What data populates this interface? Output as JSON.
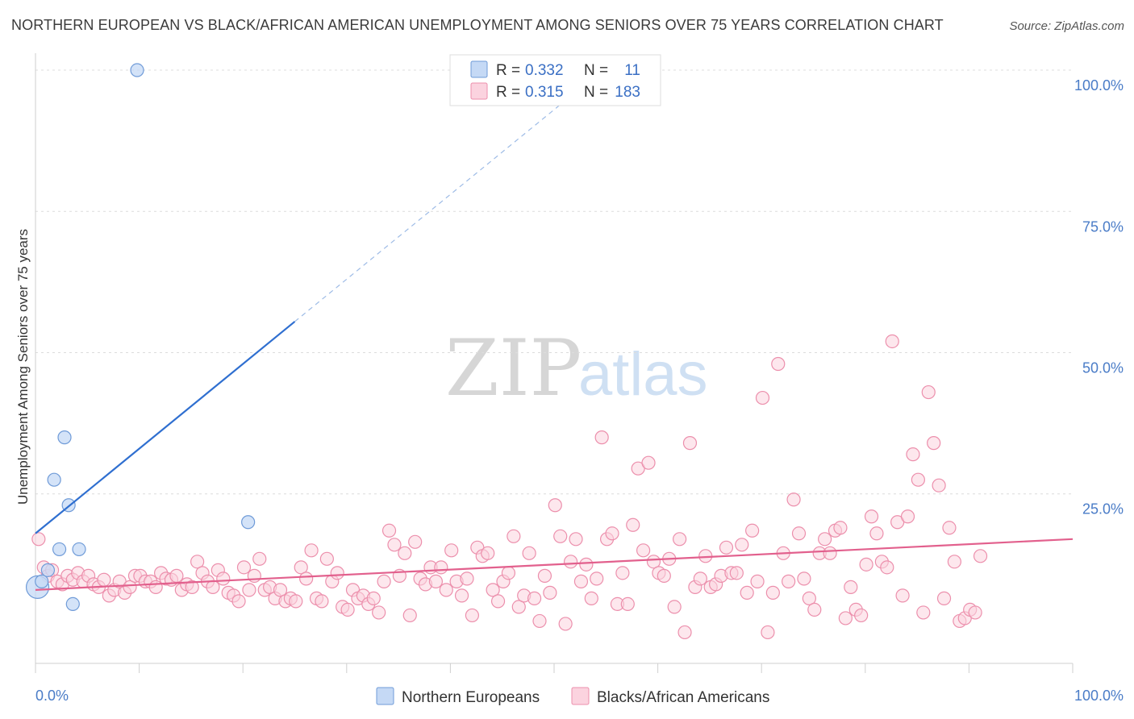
{
  "header": {
    "title": "NORTHERN EUROPEAN VS BLACK/AFRICAN AMERICAN UNEMPLOYMENT AMONG SENIORS OVER 75 YEARS CORRELATION CHART",
    "source": "Source: ZipAtlas.com"
  },
  "watermark": {
    "zip": "ZIP",
    "atlas": "atlas"
  },
  "chart_data": {
    "type": "scatter",
    "title": "NORTHERN EUROPEAN VS BLACK/AFRICAN AMERICAN UNEMPLOYMENT AMONG SENIORS OVER 75 YEARS CORRELATION CHART",
    "ylabel": "Unemployment Among Seniors over 75 years",
    "xlabel": "",
    "xlim": [
      0,
      100
    ],
    "ylim": [
      -5,
      103
    ],
    "x_tick_labels": [
      "0.0%",
      "100.0%"
    ],
    "y_ticks": [
      25,
      50,
      75,
      100
    ],
    "y_tick_labels": [
      "25.0%",
      "50.0%",
      "75.0%",
      "100.0%"
    ],
    "grid": true,
    "legend": {
      "placement": "top-center",
      "rows": [
        {
          "r_label": "R =",
          "r_value": "0.332",
          "n_label": "N =",
          "n_value": "11"
        },
        {
          "r_label": "R =",
          "r_value": "0.315",
          "n_label": "N =",
          "n_value": "183"
        }
      ]
    },
    "bottom_legend": [
      "Northern Europeans",
      "Blacks/African Americans"
    ],
    "colors": {
      "northern_fill": "#c5d9f5",
      "northern_stroke": "#6f9bd8",
      "northern_line": "#2f6fd0",
      "black_fill": "#fbd3df",
      "black_stroke": "#ec8fac",
      "black_line": "#e2608d"
    },
    "series": [
      {
        "name": "Northern Europeans",
        "trend": {
          "x0": 0,
          "y0": 18,
          "x1": 25,
          "y1": 55.5,
          "dash_to_x": 53
        },
        "points": [
          [
            0.2,
            8.5
          ],
          [
            0.6,
            9.5
          ],
          [
            1.2,
            11.5
          ],
          [
            1.8,
            27.5
          ],
          [
            2.3,
            15.2
          ],
          [
            2.8,
            35
          ],
          [
            3.2,
            23
          ],
          [
            3.6,
            5.5
          ],
          [
            4.2,
            15.2
          ],
          [
            9.8,
            100
          ],
          [
            20.5,
            20
          ]
        ]
      },
      {
        "name": "Blacks/African Americans",
        "trend": {
          "x0": 0,
          "y0": 8,
          "x1": 100,
          "y1": 17
        },
        "points": [
          [
            0.3,
            17
          ],
          [
            0.8,
            12
          ],
          [
            1.2,
            10.5
          ],
          [
            1.6,
            11.5
          ],
          [
            2.1,
            9.5
          ],
          [
            2.6,
            9
          ],
          [
            3.1,
            10.5
          ],
          [
            3.6,
            9.8
          ],
          [
            4.1,
            11
          ],
          [
            4.6,
            9.5
          ],
          [
            5.1,
            10.5
          ],
          [
            5.6,
            9
          ],
          [
            6.1,
            8.5
          ],
          [
            6.6,
            9.8
          ],
          [
            7.1,
            7
          ],
          [
            7.6,
            8
          ],
          [
            8.1,
            9.5
          ],
          [
            8.6,
            7.5
          ],
          [
            9.1,
            8.5
          ],
          [
            9.6,
            10.5
          ],
          [
            10.1,
            10.5
          ],
          [
            10.6,
            9.5
          ],
          [
            11.1,
            9.5
          ],
          [
            11.6,
            8.5
          ],
          [
            12.1,
            11
          ],
          [
            12.6,
            10
          ],
          [
            13.1,
            9.8
          ],
          [
            13.6,
            10.5
          ],
          [
            14.1,
            8
          ],
          [
            14.6,
            9
          ],
          [
            15.1,
            8.5
          ],
          [
            15.6,
            13
          ],
          [
            16.1,
            11
          ],
          [
            16.6,
            9.5
          ],
          [
            17.1,
            8.5
          ],
          [
            17.6,
            11.5
          ],
          [
            18.1,
            10
          ],
          [
            18.6,
            7.5
          ],
          [
            19.1,
            7
          ],
          [
            19.6,
            6
          ],
          [
            20.1,
            12
          ],
          [
            20.6,
            8
          ],
          [
            21.1,
            10.5
          ],
          [
            21.6,
            13.5
          ],
          [
            22.1,
            8
          ],
          [
            22.6,
            8.5
          ],
          [
            23.1,
            6.5
          ],
          [
            23.6,
            8
          ],
          [
            24.1,
            6
          ],
          [
            24.6,
            6.5
          ],
          [
            25.1,
            6
          ],
          [
            25.6,
            12
          ],
          [
            26.1,
            10
          ],
          [
            26.6,
            15
          ],
          [
            27.1,
            6.5
          ],
          [
            27.6,
            6
          ],
          [
            28.1,
            13.5
          ],
          [
            28.6,
            9.5
          ],
          [
            29.1,
            11
          ],
          [
            29.6,
            5
          ],
          [
            30.1,
            4.5
          ],
          [
            30.6,
            8
          ],
          [
            31.1,
            6.5
          ],
          [
            31.6,
            7
          ],
          [
            32.1,
            5.5
          ],
          [
            32.6,
            6.5
          ],
          [
            33.1,
            4
          ],
          [
            33.6,
            9.5
          ],
          [
            34.1,
            18.5
          ],
          [
            34.6,
            16
          ],
          [
            35.1,
            10.5
          ],
          [
            35.6,
            14.5
          ],
          [
            36.1,
            3.5
          ],
          [
            36.6,
            16.5
          ],
          [
            37.1,
            10
          ],
          [
            37.6,
            9
          ],
          [
            38.1,
            12
          ],
          [
            38.6,
            9.5
          ],
          [
            39.1,
            12
          ],
          [
            39.6,
            8
          ],
          [
            40.1,
            15
          ],
          [
            40.6,
            9.5
          ],
          [
            41.1,
            7
          ],
          [
            41.6,
            10
          ],
          [
            42.1,
            3.5
          ],
          [
            42.6,
            15.5
          ],
          [
            43.1,
            14
          ],
          [
            43.6,
            14.5
          ],
          [
            44.1,
            8
          ],
          [
            44.6,
            6
          ],
          [
            45.1,
            9.5
          ],
          [
            45.6,
            11
          ],
          [
            46.1,
            17.5
          ],
          [
            46.6,
            5
          ],
          [
            47.1,
            7
          ],
          [
            47.6,
            14.5
          ],
          [
            48.1,
            6.5
          ],
          [
            48.6,
            2.5
          ],
          [
            49.1,
            10.5
          ],
          [
            49.6,
            7.5
          ],
          [
            50.1,
            23
          ],
          [
            50.6,
            17.5
          ],
          [
            51.1,
            2
          ],
          [
            51.6,
            13
          ],
          [
            52.1,
            17
          ],
          [
            52.6,
            9.5
          ],
          [
            53.1,
            12.5
          ],
          [
            53.6,
            6.5
          ],
          [
            54.1,
            10
          ],
          [
            54.6,
            35
          ],
          [
            55.1,
            17
          ],
          [
            55.6,
            18
          ],
          [
            56.1,
            5.5
          ],
          [
            56.6,
            11
          ],
          [
            57.1,
            5.5
          ],
          [
            57.6,
            19.5
          ],
          [
            58.1,
            29.5
          ],
          [
            58.6,
            15
          ],
          [
            59.1,
            30.5
          ],
          [
            59.6,
            13
          ],
          [
            60.1,
            11
          ],
          [
            60.6,
            10.5
          ],
          [
            61.1,
            13.5
          ],
          [
            61.6,
            5
          ],
          [
            62.1,
            17
          ],
          [
            62.6,
            0.5
          ],
          [
            63.1,
            34
          ],
          [
            63.6,
            8.5
          ],
          [
            64.1,
            10
          ],
          [
            64.6,
            14
          ],
          [
            65.1,
            8.5
          ],
          [
            65.6,
            9
          ],
          [
            66.1,
            10.5
          ],
          [
            66.6,
            15.5
          ],
          [
            67.1,
            11
          ],
          [
            67.6,
            11
          ],
          [
            68.1,
            16
          ],
          [
            68.6,
            7.5
          ],
          [
            69.1,
            18.5
          ],
          [
            69.6,
            9.5
          ],
          [
            70.1,
            42
          ],
          [
            70.6,
            0.5
          ],
          [
            71.1,
            7.5
          ],
          [
            71.6,
            48
          ],
          [
            72.1,
            14.5
          ],
          [
            72.6,
            9.5
          ],
          [
            73.1,
            24
          ],
          [
            73.6,
            18
          ],
          [
            74.1,
            10
          ],
          [
            74.6,
            6.5
          ],
          [
            75.1,
            4.5
          ],
          [
            75.6,
            14.5
          ],
          [
            76.1,
            17
          ],
          [
            76.6,
            14.5
          ],
          [
            77.1,
            18.5
          ],
          [
            77.6,
            19
          ],
          [
            78.1,
            3
          ],
          [
            78.6,
            8.5
          ],
          [
            79.1,
            4.5
          ],
          [
            79.6,
            3.5
          ],
          [
            80.1,
            12.5
          ],
          [
            80.6,
            21
          ],
          [
            81.1,
            18
          ],
          [
            81.6,
            13
          ],
          [
            82.1,
            12
          ],
          [
            82.6,
            52
          ],
          [
            83.1,
            20
          ],
          [
            83.6,
            7
          ],
          [
            84.1,
            21
          ],
          [
            84.6,
            32
          ],
          [
            85.1,
            27.5
          ],
          [
            85.6,
            4
          ],
          [
            86.1,
            43
          ],
          [
            86.6,
            34
          ],
          [
            87.1,
            26.5
          ],
          [
            87.6,
            6.5
          ],
          [
            88.1,
            19
          ],
          [
            88.6,
            13
          ],
          [
            89.1,
            2.5
          ],
          [
            89.6,
            3
          ],
          [
            90.1,
            4.5
          ],
          [
            90.6,
            4
          ],
          [
            91.1,
            14
          ]
        ]
      }
    ]
  }
}
